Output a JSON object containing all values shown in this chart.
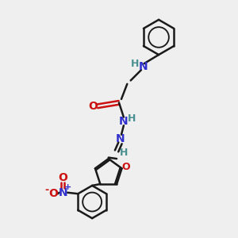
{
  "bg_color": "#efefef",
  "bond_color": "#1a1a1a",
  "N_color": "#3030cc",
  "O_color": "#cc1111",
  "H_color": "#4a9090",
  "line_width": 1.8,
  "font_size": 9,
  "fig_size": [
    3.0,
    3.0
  ],
  "dpi": 100,
  "xlim": [
    0,
    10
  ],
  "ylim": [
    0,
    10
  ]
}
